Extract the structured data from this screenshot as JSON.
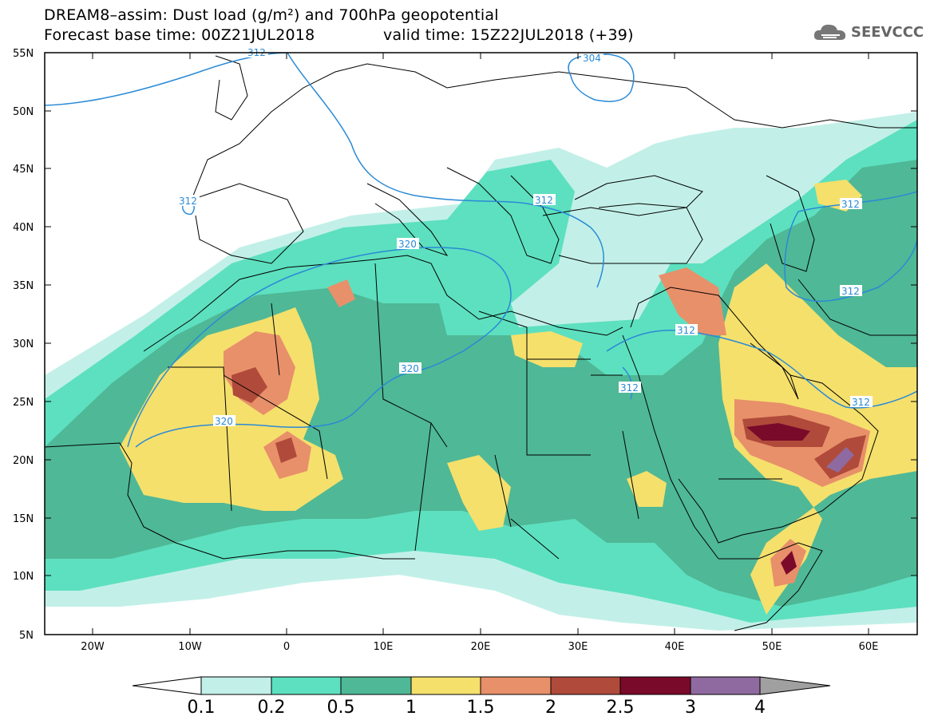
{
  "header": {
    "title": "DREAM8–assim: Dust load (g/m²) and 700hPa geopotential",
    "base_time": "Forecast base time: 00Z21JUL2018",
    "valid_time": "valid time: 15Z22JUL2018 (+39)"
  },
  "logo": {
    "text": "SEEVCCC",
    "icon": "cloud-icon"
  },
  "axes": {
    "lat_labels": [
      "55N",
      "50N",
      "45N",
      "40N",
      "35N",
      "30N",
      "25N",
      "20N",
      "15N",
      "10N",
      "5N"
    ],
    "lon_labels": [
      "20W",
      "10W",
      "0",
      "10E",
      "20E",
      "30E",
      "40E",
      "50E",
      "60E"
    ]
  },
  "contours": {
    "labels": [
      "304",
      "312",
      "312",
      "320",
      "320",
      "320",
      "312",
      "312",
      "312",
      "312",
      "312",
      "312"
    ]
  },
  "colorbar": {
    "ticks": [
      "0.1",
      "0.2",
      "0.5",
      "1",
      "1.5",
      "2",
      "2.5",
      "3",
      "4"
    ],
    "colors": [
      "#c2f0e8",
      "#5de0bf",
      "#4fb896",
      "#f5e06c",
      "#e8906a",
      "#b04a3a",
      "#7a0a2a",
      "#8f6aa0"
    ],
    "end_colors": {
      "low": "#ffffff",
      "high": "#a0a0a0"
    }
  }
}
